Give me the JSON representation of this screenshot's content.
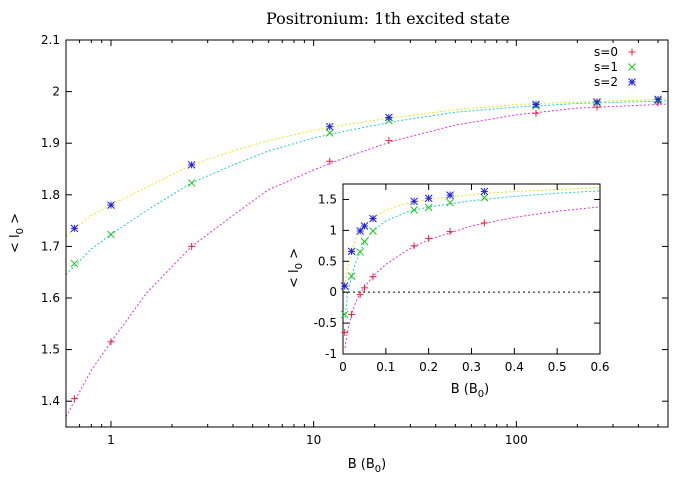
{
  "chart_data": [
    {
      "type": "line",
      "title": "Positronium: 1th excited state",
      "xlabel": "B (B",
      "xlabel_sub": "0",
      "xlabel_suffix": ")",
      "ylabel": "< l",
      "ylabel_sub": "0",
      "ylabel_suffix": " >",
      "xscale": "log",
      "xlim": [
        0.6,
        560
      ],
      "ylim": [
        1.35,
        2.1
      ],
      "x_ticks": [
        1,
        10,
        100
      ],
      "x_tick_labels": [
        "1",
        "10",
        "100"
      ],
      "y_ticks": [
        1.4,
        1.5,
        1.6,
        1.7,
        1.8,
        1.9,
        2.0,
        2.1
      ],
      "y_tick_labels": [
        "1.4",
        "1.5",
        "1.6",
        "1.7",
        "1.8",
        "1.9",
        "2",
        "2.1"
      ],
      "legend_position": "top-right",
      "series": [
        {
          "name": "s=0",
          "color": "#e8203a",
          "marker": "plus",
          "x": [
            0.66,
            1.0,
            2.5,
            12.0,
            23.5,
            125.0,
            250.0,
            500.0
          ],
          "y": [
            1.405,
            1.515,
            1.7,
            1.865,
            1.905,
            1.958,
            1.97,
            1.978
          ],
          "fit_color": "#e030e0",
          "fit_x": [
            0.6,
            0.8,
            1.0,
            1.5,
            2.5,
            4,
            6,
            10,
            15,
            25,
            50,
            100,
            200,
            560
          ],
          "fit_y": [
            1.37,
            1.46,
            1.515,
            1.61,
            1.7,
            1.76,
            1.81,
            1.848,
            1.875,
            1.905,
            1.935,
            1.955,
            1.968,
            1.976
          ]
        },
        {
          "name": "s=1",
          "color": "#1cc81c",
          "marker": "cross",
          "x": [
            0.66,
            1.0,
            2.5,
            12.0,
            23.5,
            125.0,
            250.0,
            500.0
          ],
          "y": [
            1.667,
            1.723,
            1.823,
            1.92,
            1.944,
            1.972,
            1.978,
            1.982
          ],
          "fit_color": "#22cccc",
          "fit_x": [
            0.6,
            0.8,
            1.0,
            1.5,
            2.5,
            4,
            6,
            10,
            15,
            25,
            50,
            100,
            200,
            560
          ],
          "fit_y": [
            1.645,
            1.695,
            1.723,
            1.77,
            1.823,
            1.858,
            1.885,
            1.91,
            1.925,
            1.942,
            1.96,
            1.97,
            1.977,
            1.982
          ]
        },
        {
          "name": "s=2",
          "color": "#2020e0",
          "marker": "star",
          "x": [
            0.66,
            1.0,
            2.5,
            12.0,
            23.5,
            125.0,
            250.0,
            500.0
          ],
          "y": [
            1.735,
            1.78,
            1.858,
            1.932,
            1.95,
            1.975,
            1.98,
            1.985
          ],
          "fit_color": "#e8e820",
          "fit_x": [
            0.6,
            0.8,
            1.0,
            1.5,
            2.5,
            4,
            6,
            10,
            15,
            25,
            50,
            100,
            200,
            560
          ],
          "fit_y": [
            1.72,
            1.76,
            1.78,
            1.815,
            1.858,
            1.885,
            1.905,
            1.925,
            1.937,
            1.95,
            1.965,
            1.975,
            1.98,
            1.985
          ]
        }
      ]
    },
    {
      "type": "line",
      "title": "",
      "xlabel": "B (B",
      "xlabel_sub": "0",
      "xlabel_suffix": ")",
      "ylabel": "< l",
      "ylabel_sub": "0",
      "ylabel_suffix": " >",
      "xscale": "linear",
      "xlim": [
        0,
        0.6
      ],
      "ylim": [
        -1,
        1.75
      ],
      "x_ticks": [
        0,
        0.1,
        0.2,
        0.3,
        0.4,
        0.5,
        0.6
      ],
      "x_tick_labels": [
        "0",
        "0.1",
        "0.2",
        "0.3",
        "0.4",
        "0.5",
        "0.6"
      ],
      "y_ticks": [
        -1,
        -0.5,
        0,
        0.5,
        1,
        1.5
      ],
      "y_tick_labels": [
        "-1",
        "-0.5",
        "0",
        "0.5",
        "1",
        "1.5"
      ],
      "zero_line": true,
      "series": [
        {
          "name": "s=0",
          "color": "#e8203a",
          "marker": "plus",
          "x": [
            0.004,
            0.02,
            0.04,
            0.05,
            0.07,
            0.166,
            0.2,
            0.25,
            0.33
          ],
          "y": [
            -0.65,
            -0.36,
            -0.04,
            0.07,
            0.25,
            0.75,
            0.87,
            0.98,
            1.12
          ],
          "fit_color": "#e030e0",
          "fit_x": [
            0.005,
            0.01,
            0.02,
            0.03,
            0.04,
            0.05,
            0.07,
            0.1,
            0.15,
            0.2,
            0.3,
            0.4,
            0.5,
            0.6
          ],
          "fit_y": [
            -0.9,
            -0.65,
            -0.36,
            -0.15,
            -0.02,
            0.08,
            0.26,
            0.45,
            0.68,
            0.85,
            1.07,
            1.21,
            1.31,
            1.38
          ]
        },
        {
          "name": "s=1",
          "color": "#1cc81c",
          "marker": "cross",
          "x": [
            0.004,
            0.02,
            0.04,
            0.05,
            0.07,
            0.166,
            0.2,
            0.25,
            0.33
          ],
          "y": [
            -0.36,
            0.26,
            0.65,
            0.82,
            0.99,
            1.33,
            1.37,
            1.45,
            1.53
          ],
          "fit_color": "#22cccc",
          "fit_x": [
            0.005,
            0.01,
            0.02,
            0.03,
            0.04,
            0.05,
            0.07,
            0.1,
            0.15,
            0.2,
            0.3,
            0.4,
            0.5,
            0.6
          ],
          "fit_y": [
            -0.42,
            -0.05,
            0.26,
            0.48,
            0.65,
            0.8,
            1.0,
            1.15,
            1.3,
            1.38,
            1.48,
            1.55,
            1.6,
            1.64
          ]
        },
        {
          "name": "s=2",
          "color": "#2020e0",
          "marker": "star",
          "x": [
            0.004,
            0.02,
            0.04,
            0.05,
            0.07,
            0.166,
            0.2,
            0.25,
            0.33
          ],
          "y": [
            0.1,
            0.66,
            0.99,
            1.07,
            1.19,
            1.47,
            1.52,
            1.57,
            1.63
          ],
          "fit_color": "#e8e820",
          "fit_x": [
            0.005,
            0.01,
            0.02,
            0.03,
            0.04,
            0.05,
            0.07,
            0.1,
            0.15,
            0.2,
            0.3,
            0.4,
            0.5,
            0.6
          ],
          "fit_y": [
            0.1,
            0.38,
            0.66,
            0.86,
            0.99,
            1.08,
            1.21,
            1.33,
            1.44,
            1.5,
            1.58,
            1.63,
            1.66,
            1.69
          ]
        }
      ]
    }
  ]
}
